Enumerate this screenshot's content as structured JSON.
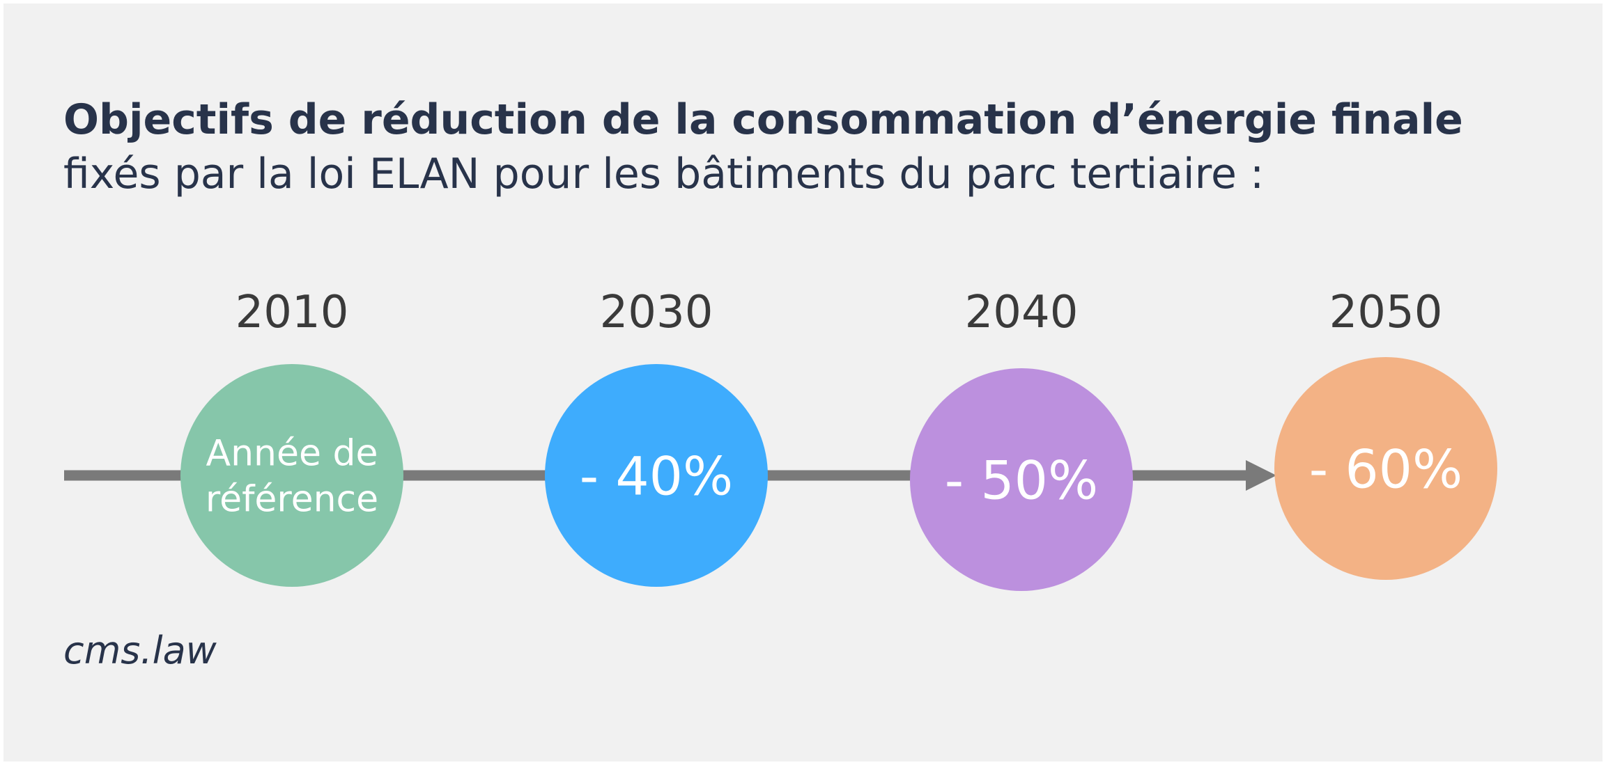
{
  "header": {
    "title": "Objectifs de réduction de la consommation d’énergie finale",
    "subtitle": "fixés par la loi ELAN pour les bâtiments du parc tertiaire :"
  },
  "timeline": [
    {
      "year": "2010",
      "label": [
        "Année de",
        "référence"
      ]
    },
    {
      "year": "2030",
      "label": [
        "- 40%"
      ]
    },
    {
      "year": "2040",
      "label": [
        "- 50%"
      ]
    },
    {
      "year": "2050",
      "label": [
        "- 60%"
      ]
    }
  ],
  "footer": {
    "source": "cms.law"
  }
}
